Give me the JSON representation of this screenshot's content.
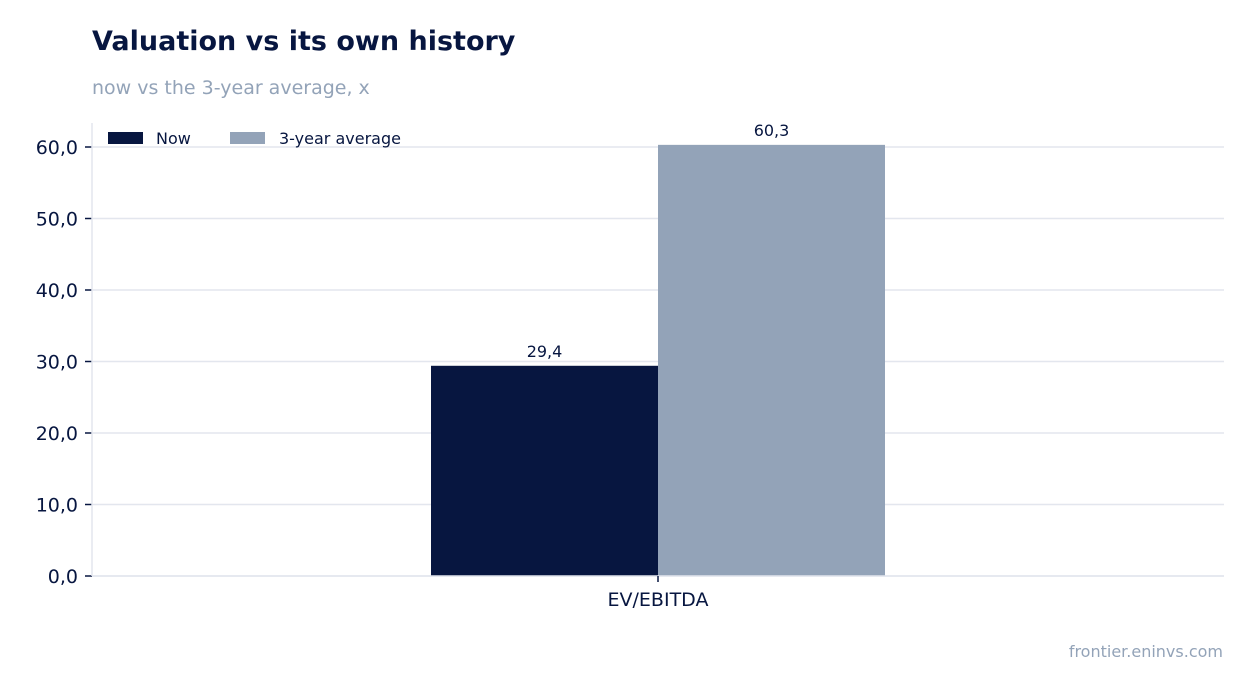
{
  "header": {
    "title": "Valuation vs its own history",
    "subtitle": "now vs the 3-year average, x"
  },
  "footer": {
    "source": "frontier.eninvs.com"
  },
  "colors": {
    "now": "#071640",
    "average": "#93a3b8",
    "grid": "#e3e6ee",
    "text": "#071640"
  },
  "chart_data": {
    "type": "bar",
    "title": "Valuation vs its own history",
    "subtitle": "now vs the 3-year average, x",
    "xlabel": "",
    "ylabel": "",
    "categories": [
      "EV/EBITDA"
    ],
    "series": [
      {
        "name": "Now",
        "values": [
          29.4
        ],
        "labels": [
          "29,4"
        ]
      },
      {
        "name": "3-year average",
        "values": [
          60.3
        ],
        "labels": [
          "60,3"
        ]
      }
    ],
    "ylim": [
      0,
      60
    ],
    "yticks": [
      0,
      10,
      20,
      30,
      40,
      50,
      60
    ],
    "ytick_labels": [
      "0,0",
      "10,0",
      "20,0",
      "30,0",
      "40,0",
      "50,0",
      "60,0"
    ],
    "grid": true,
    "legend": "top-left"
  }
}
